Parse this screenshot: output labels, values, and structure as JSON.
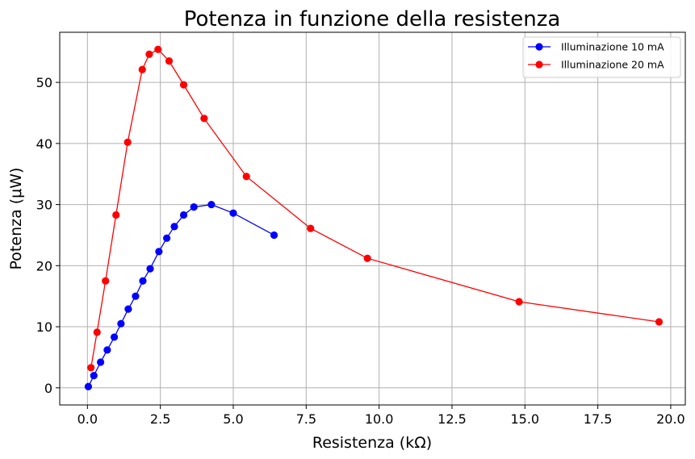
{
  "chart_data": {
    "type": "line",
    "title": "Potenza in funzione della resistenza",
    "xlabel": "Resistenza (kΩ)",
    "ylabel": "Potenza (μW)",
    "xlim": [
      -0.95,
      20.5
    ],
    "ylim": [
      -2.8,
      58.2
    ],
    "xticks": [
      0.0,
      2.5,
      5.0,
      7.5,
      10.0,
      12.5,
      15.0,
      17.5,
      20.0
    ],
    "xtick_labels": [
      "0.0",
      "2.5",
      "5.0",
      "7.5",
      "10.0",
      "12.5",
      "15.0",
      "17.5",
      "20.0"
    ],
    "yticks": [
      0,
      10,
      20,
      30,
      40,
      50
    ],
    "ytick_labels": [
      "0",
      "10",
      "20",
      "30",
      "40",
      "50"
    ],
    "grid": true,
    "legend_position": "top-right",
    "series": [
      {
        "name": "Illuminazione 10 mA",
        "color": "#0000ff",
        "marker": "circle",
        "x": [
          0.03,
          0.22,
          0.45,
          0.68,
          0.92,
          1.15,
          1.4,
          1.65,
          1.9,
          2.15,
          2.45,
          2.72,
          2.98,
          3.3,
          3.65,
          4.25,
          5.0,
          6.4
        ],
        "y": [
          0.2,
          2.0,
          4.2,
          6.2,
          8.3,
          10.5,
          12.9,
          15.0,
          17.5,
          19.5,
          22.3,
          24.5,
          26.4,
          28.3,
          29.6,
          30.0,
          28.6,
          25.0
        ]
      },
      {
        "name": "Illuminazione 20 mA",
        "color": "#ff0000",
        "marker": "circle",
        "x": [
          0.12,
          0.33,
          0.62,
          0.98,
          1.38,
          1.88,
          2.12,
          2.42,
          2.8,
          3.3,
          4.0,
          5.45,
          7.65,
          9.6,
          14.8,
          19.6
        ],
        "y": [
          3.3,
          9.1,
          17.5,
          28.3,
          40.2,
          52.1,
          54.6,
          55.4,
          53.5,
          49.6,
          44.1,
          34.6,
          26.1,
          21.2,
          14.1,
          10.8
        ]
      }
    ]
  }
}
